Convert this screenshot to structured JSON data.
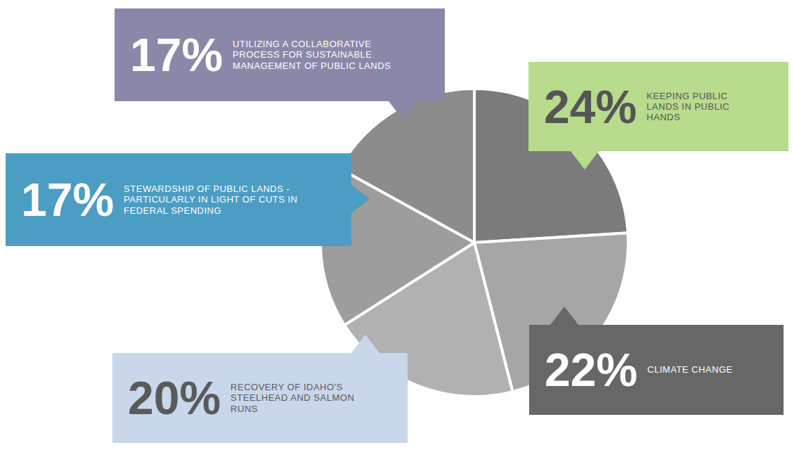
{
  "chart_data": {
    "type": "pie",
    "categories": [
      "KEEPING PUBLIC LANDS IN PUBLIC HANDS",
      "CLIMATE CHANGE",
      "RECOVERY OF IDAHO'S STEELHEAD AND SALMON RUNS",
      "STEWARDSHIP OF PUBLIC LANDS - PARTICULARLY IN LIGHT OF CUTS IN FEDERAL SPENDING",
      "UTILIZING A COLLABORATIVE PROCESS FOR SUSTAINABLE MANAGEMENT OF PUBLIC LANDS"
    ],
    "values": [
      24,
      22,
      20,
      17,
      17
    ],
    "value_labels": [
      "24%",
      "22%",
      "20%",
      "17%",
      "17%"
    ],
    "colors": [
      "#7b7b7b",
      "#a6a6a6",
      "#b1b1b1",
      "#9d9d9d",
      "#8c8c8c"
    ],
    "data_labels": true
  }
}
